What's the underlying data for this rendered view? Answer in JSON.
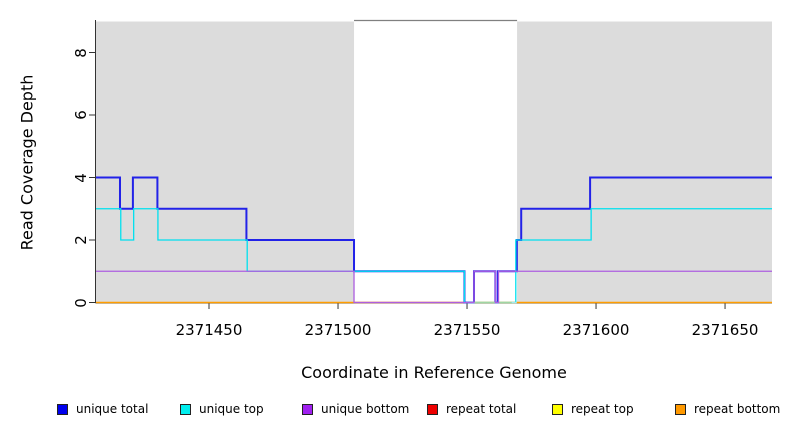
{
  "figure": {
    "xlabel": "Coordinate in Reference Genome",
    "ylabel": "Read Coverage Depth"
  },
  "legend": {
    "items": [
      {
        "label": "unique total",
        "color": "#0000EE"
      },
      {
        "label": "unique top",
        "color": "#00EEEE"
      },
      {
        "label": "unique bottom",
        "color": "#A020F0"
      },
      {
        "label": "repeat total",
        "color": "#EE0000"
      },
      {
        "label": "repeat top",
        "color": "#FFFF00"
      },
      {
        "label": "repeat bottom",
        "color": "#FF9900"
      }
    ]
  },
  "chart_data": {
    "type": "line",
    "step": true,
    "title": "",
    "xlabel": "Coordinate in Reference Genome",
    "ylabel": "Read Coverage Depth",
    "xlim": [
      2371406.2,
      2371668.2
    ],
    "ylim": [
      0,
      9.05
    ],
    "x_ticks": [
      2371450,
      2371500,
      2371550,
      2371600,
      2371650
    ],
    "y_ticks": [
      0,
      2,
      4,
      6,
      8
    ],
    "grid": false,
    "legend_position": "bottom",
    "shade_color": "#DCDCDC",
    "shaded_regions": [
      [
        2371406.2,
        2371506.2
      ],
      [
        2371569.4,
        2371668.2
      ]
    ],
    "box_top_gap_segment": {
      "from": 2371506.2,
      "to": 2371569.4,
      "color": "#808080"
    },
    "series": [
      {
        "name": "repeat bottom",
        "color": "#FF9D00",
        "width": 1.6,
        "steps": [
          [
            2371406.2,
            0
          ]
        ],
        "end": 2371668.2
      },
      {
        "name": "unique total",
        "color": "#2222E8",
        "width": 2,
        "steps": [
          [
            2371406.2,
            4
          ],
          [
            2371415.5,
            3
          ],
          [
            2371420.5,
            4
          ],
          [
            2371430,
            3
          ],
          [
            2371464.5,
            2
          ],
          [
            2371506.2,
            1
          ],
          [
            2371549,
            0
          ],
          [
            2371552.7,
            1
          ],
          [
            2371561,
            0
          ],
          [
            2371562,
            1
          ],
          [
            2371569.3,
            2
          ],
          [
            2371571,
            3
          ],
          [
            2371597.7,
            4
          ]
        ],
        "end": 2371668.2
      },
      {
        "name": "unique top",
        "color": "#00E0EE",
        "width": 1.3,
        "steps": [
          [
            2371406.2,
            3
          ],
          [
            2371415.8,
            2
          ],
          [
            2371420.8,
            3
          ],
          [
            2371430.2,
            2
          ],
          [
            2371464.8,
            1
          ],
          [
            2371549,
            0
          ],
          [
            2371568.9,
            2
          ],
          [
            2371598.1,
            3
          ]
        ],
        "end": 2371668.2
      },
      {
        "name": "unique bottom",
        "color": "#AD5FE0",
        "width": 1.3,
        "steps": [
          [
            2371406.2,
            1
          ],
          [
            2371506.2,
            0
          ],
          [
            2371552.7,
            1
          ],
          [
            2371561,
            0
          ],
          [
            2371562.2,
            1
          ]
        ],
        "end": 2371668.2
      }
    ],
    "zero_overlays": [
      {
        "color": "#D06088",
        "from": 2371506.5,
        "to": 2371548.6
      },
      {
        "color": "#9FD6A4",
        "from": 2371549.8,
        "to": 2371567.3
      },
      {
        "color": "#A5E9F0",
        "from": 2371567.3,
        "to": 2371569.3
      }
    ]
  }
}
